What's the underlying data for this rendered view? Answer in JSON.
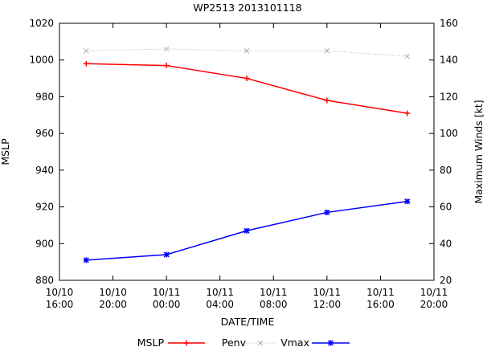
{
  "chart_data": {
    "type": "line",
    "title": "WP2513 2013101118",
    "xlabel": "DATE/TIME",
    "ylabel": "MSLP",
    "y2label": "Maximum Winds [kt]",
    "x_ticks": [
      "10/10\n16:00",
      "10/10\n20:00",
      "10/11\n00:00",
      "10/11\n04:00",
      "10/11\n08:00",
      "10/11\n12:00",
      "10/11\n16:00",
      "10/11\n20:00"
    ],
    "x_range_hours": [
      -8,
      20
    ],
    "ylim": [
      880,
      1020
    ],
    "y_ticks": [
      880,
      900,
      920,
      940,
      960,
      980,
      1000,
      1020
    ],
    "y2lim": [
      20,
      160
    ],
    "y2_ticks": [
      20,
      40,
      60,
      80,
      100,
      120,
      140,
      160
    ],
    "x_hours": [
      -6,
      0,
      6,
      12,
      18
    ],
    "series": [
      {
        "name": "MSLP",
        "axis": "y",
        "color": "#ff0000",
        "marker": "plus",
        "style": "solid",
        "values": [
          998,
          997,
          990,
          978,
          971
        ]
      },
      {
        "name": "Penv",
        "axis": "y",
        "color": "#a0a0a0",
        "marker": "cross",
        "style": "dotted",
        "values": [
          1005,
          1006,
          1005,
          1005,
          1002
        ]
      },
      {
        "name": "Vmax",
        "axis": "y2",
        "color": "#0000ff",
        "marker": "star",
        "style": "solid",
        "values": [
          31,
          34,
          47,
          57,
          63
        ]
      }
    ],
    "legend": {
      "placement": "bottom",
      "labels": [
        "MSLP",
        "Penv",
        "Vmax"
      ]
    },
    "grid": false
  }
}
